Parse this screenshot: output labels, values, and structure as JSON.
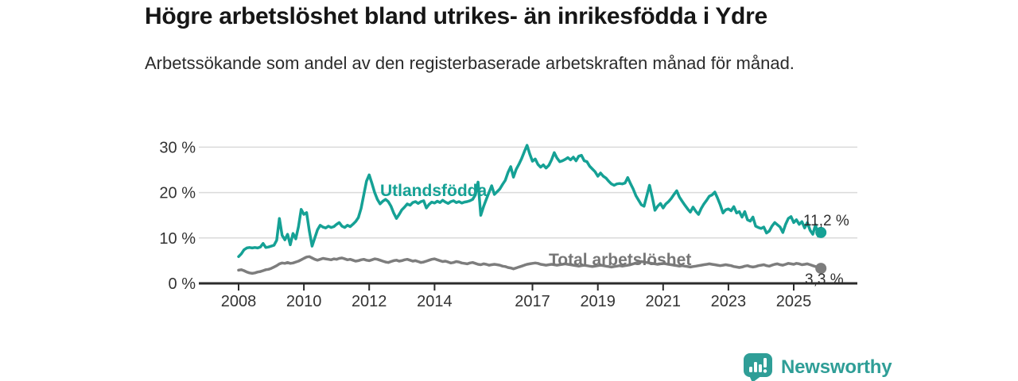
{
  "chart_data": {
    "type": "line",
    "title": "Högre arbetslöshet bland utrikes- än inrikesfödda i Ydre",
    "subtitle": "Arbetssökande som andel av den registerbaserade arbetskraften månad för månad.",
    "unit": "%",
    "frequency": "monthly",
    "x_start": {
      "year": 2008,
      "month": 1
    },
    "x_end": {
      "year": 2025,
      "month": 11
    },
    "ylim": [
      0,
      32
    ],
    "grid": true,
    "legend_position": "inline-labels",
    "y_ticks": [
      {
        "label": "0 %",
        "value": 0
      },
      {
        "label": "10 %",
        "value": 10
      },
      {
        "label": "20 %",
        "value": 20
      },
      {
        "label": "30 %",
        "value": 30
      }
    ],
    "x_ticks": [
      {
        "label": "2008",
        "year": 2008
      },
      {
        "label": "2010",
        "year": 2010
      },
      {
        "label": "2012",
        "year": 2012
      },
      {
        "label": "2014",
        "year": 2014
      },
      {
        "label": "2017",
        "year": 2017
      },
      {
        "label": "2019",
        "year": 2019
      },
      {
        "label": "2021",
        "year": 2021
      },
      {
        "label": "2023",
        "year": 2023
      },
      {
        "label": "2025",
        "year": 2025
      }
    ],
    "series": [
      {
        "name": "Utlandsfödda",
        "color": "#15a195",
        "end_label": "11,2 %",
        "end_value": 11.2,
        "values": [
          5.9,
          6.5,
          7.4,
          7.8,
          7.9,
          7.8,
          7.9,
          7.8,
          8.0,
          8.8,
          7.9,
          8.0,
          8.2,
          8.4,
          9.5,
          14.3,
          10.6,
          9.6,
          10.8,
          8.5,
          11.0,
          9.8,
          12.5,
          16.3,
          15.2,
          15.6,
          11.5,
          8.2,
          10.0,
          11.8,
          12.8,
          12.4,
          12.2,
          12.6,
          12.3,
          12.5,
          13.0,
          13.4,
          12.6,
          12.3,
          12.8,
          12.5,
          13.0,
          13.6,
          14.5,
          16.5,
          19.5,
          22.5,
          23.9,
          22.0,
          20.0,
          18.5,
          17.5,
          18.1,
          18.5,
          18.0,
          17.0,
          15.5,
          14.3,
          15.2,
          16.2,
          16.8,
          17.5,
          17.2,
          17.8,
          18.0,
          17.6,
          18.0,
          18.2,
          16.6,
          17.4,
          17.9,
          17.7,
          18.1,
          17.8,
          18.3,
          17.9,
          17.6,
          18.0,
          18.2,
          17.8,
          18.0,
          17.7,
          17.9,
          18.0,
          18.2,
          18.5,
          19.5,
          22.3,
          15.0,
          16.9,
          18.5,
          20.0,
          21.5,
          19.6,
          20.2,
          20.8,
          21.8,
          22.7,
          24.4,
          25.7,
          23.4,
          25.1,
          26.2,
          27.5,
          29.0,
          30.4,
          28.5,
          26.9,
          27.4,
          26.2,
          25.6,
          26.1,
          25.4,
          26.0,
          27.2,
          28.8,
          27.6,
          26.8,
          27.0,
          27.3,
          27.7,
          27.2,
          27.8,
          27.0,
          28.0,
          28.2,
          27.0,
          26.8,
          25.8,
          25.2,
          24.6,
          23.6,
          24.3,
          23.6,
          23.2,
          22.5,
          21.9,
          21.6,
          21.9,
          22.0,
          21.9,
          22.1,
          23.3,
          22.0,
          20.8,
          19.3,
          18.3,
          17.3,
          17.0,
          19.3,
          21.6,
          19.0,
          16.1,
          17.0,
          17.6,
          16.6,
          17.5,
          18.0,
          18.7,
          19.6,
          20.4,
          19.0,
          18.1,
          17.2,
          16.4,
          15.7,
          16.8,
          15.9,
          15.2,
          16.5,
          17.5,
          18.3,
          19.2,
          19.5,
          20.1,
          18.8,
          17.3,
          15.5,
          16.2,
          16.4,
          16.0,
          16.9,
          15.5,
          15.8,
          14.6,
          15.8,
          14.0,
          13.7,
          14.6,
          12.6,
          12.3,
          12.1,
          12.4,
          11.1,
          11.5,
          12.6,
          13.4,
          12.9,
          12.4,
          11.2,
          13.0,
          14.3,
          14.7,
          13.4,
          14.0,
          13.0,
          13.6,
          12.2,
          13.4,
          11.7,
          10.8,
          12.9,
          10.4,
          11.2
        ]
      },
      {
        "name": "Total arbetslöshet",
        "color": "#7d7d7d",
        "end_label": "3,3 %",
        "end_value": 3.3,
        "values": [
          2.9,
          3.0,
          2.8,
          2.5,
          2.3,
          2.2,
          2.3,
          2.5,
          2.6,
          2.8,
          3.0,
          3.1,
          3.3,
          3.6,
          3.9,
          4.3,
          4.5,
          4.4,
          4.6,
          4.4,
          4.5,
          4.7,
          4.9,
          5.2,
          5.5,
          5.8,
          5.9,
          5.6,
          5.3,
          5.1,
          5.3,
          5.5,
          5.4,
          5.3,
          5.2,
          5.4,
          5.3,
          5.5,
          5.6,
          5.4,
          5.2,
          5.3,
          5.1,
          4.9,
          5.0,
          5.2,
          5.3,
          5.1,
          5.0,
          5.2,
          5.4,
          5.3,
          5.1,
          4.9,
          4.7,
          4.6,
          4.8,
          5.0,
          5.1,
          4.9,
          5.0,
          5.2,
          5.3,
          5.1,
          4.9,
          5.0,
          4.8,
          4.6,
          4.7,
          4.9,
          5.1,
          5.3,
          5.4,
          5.2,
          5.0,
          4.8,
          4.9,
          4.7,
          4.5,
          4.6,
          4.8,
          4.7,
          4.5,
          4.4,
          4.3,
          4.5,
          4.6,
          4.4,
          4.2,
          4.1,
          4.3,
          4.2,
          4.0,
          4.1,
          4.2,
          4.1,
          4.0,
          3.8,
          3.7,
          3.5,
          3.4,
          3.2,
          3.4,
          3.6,
          3.8,
          4.0,
          4.2,
          4.3,
          4.4,
          4.5,
          4.4,
          4.2,
          4.1,
          4.0,
          4.1,
          4.2,
          4.1,
          4.0,
          4.1,
          4.2,
          4.3,
          4.2,
          4.1,
          4.0,
          3.9,
          3.8,
          3.9,
          4.0,
          3.9,
          3.8,
          3.7,
          3.8,
          3.9,
          4.0,
          3.9,
          3.8,
          3.7,
          3.6,
          3.7,
          3.8,
          3.9,
          3.8,
          3.9,
          4.0,
          4.1,
          4.3,
          4.5,
          4.7,
          4.8,
          4.7,
          4.6,
          4.5,
          4.4,
          4.3,
          4.2,
          4.3,
          4.4,
          4.3,
          4.2,
          4.1,
          4.0,
          3.9,
          3.8,
          3.9,
          3.8,
          3.7,
          3.6,
          3.7,
          3.8,
          3.9,
          4.0,
          4.1,
          4.2,
          4.3,
          4.2,
          4.1,
          4.0,
          3.9,
          4.0,
          4.1,
          4.0,
          3.9,
          3.7,
          3.6,
          3.5,
          3.6,
          3.8,
          3.9,
          3.7,
          3.6,
          3.7,
          3.9,
          4.0,
          4.1,
          3.9,
          3.8,
          4.0,
          4.2,
          4.3,
          4.1,
          4.0,
          4.2,
          4.4,
          4.3,
          4.2,
          4.4,
          4.3,
          4.1,
          4.2,
          4.3,
          4.1,
          3.9,
          3.7,
          3.5,
          3.3
        ]
      }
    ]
  },
  "footer": {
    "brand": "Newsworthy"
  }
}
